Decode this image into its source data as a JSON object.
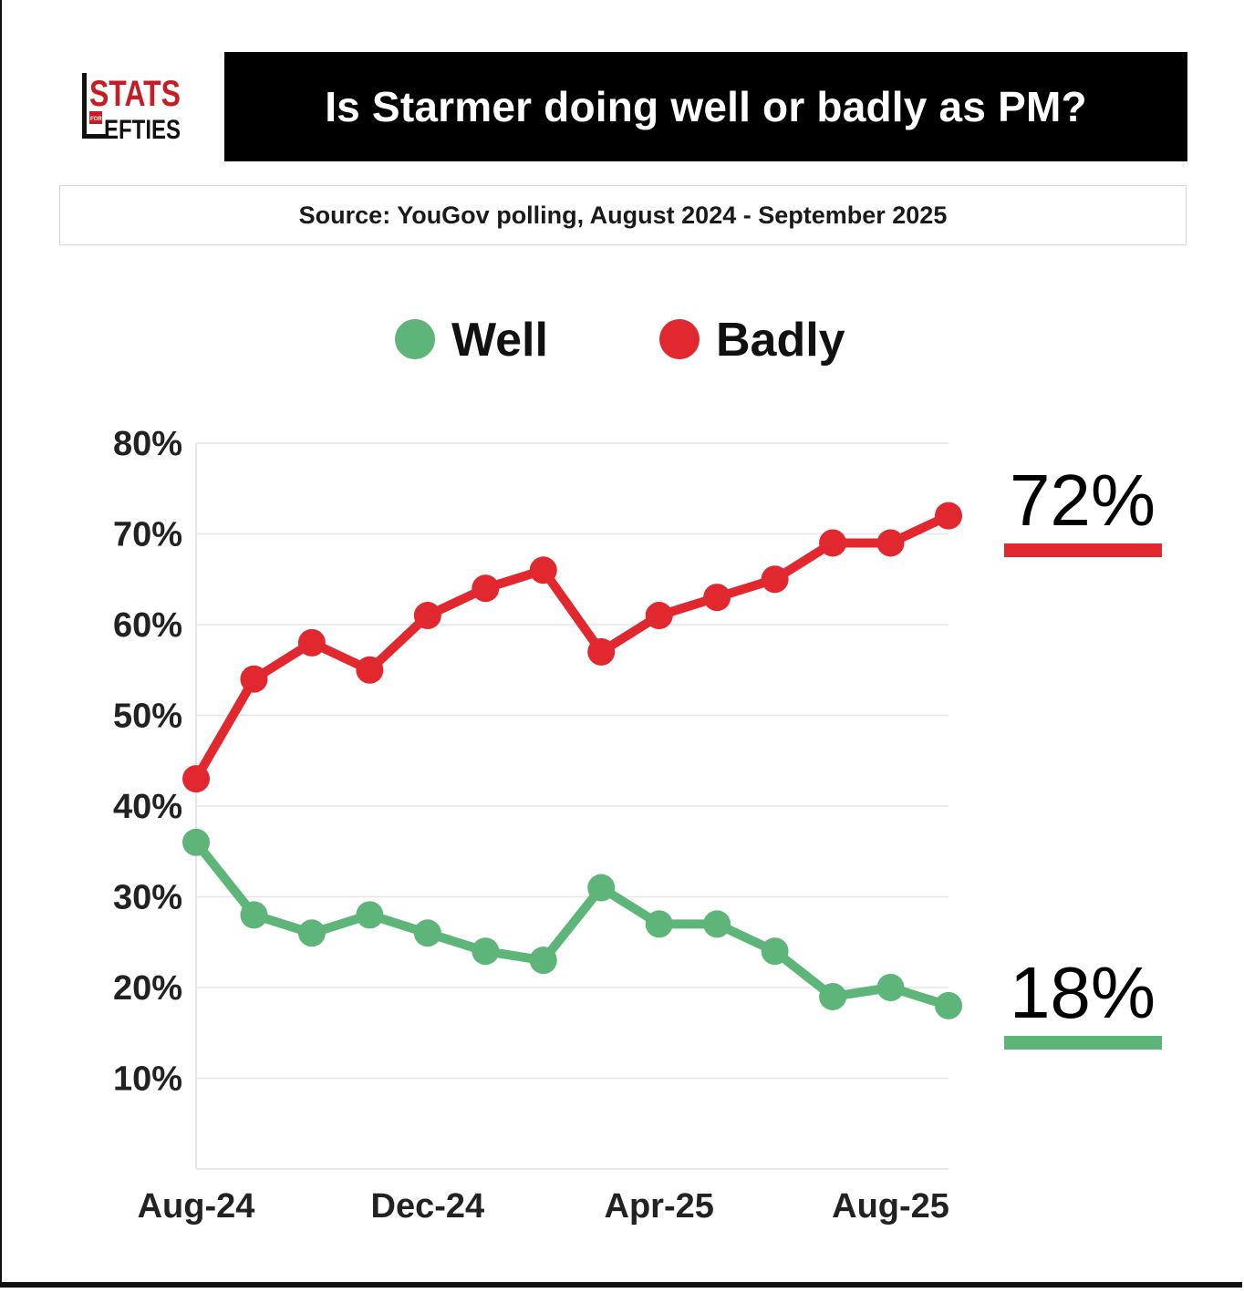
{
  "brand": {
    "logo_line1": "STATS",
    "logo_small": "FOR",
    "logo_line2": "EFTIES"
  },
  "header": {
    "title": "Is Starmer doing well or badly as PM?"
  },
  "source": {
    "text": "Source: YouGov polling, August 2024 - September 2025"
  },
  "colors": {
    "well": "#5db57a",
    "badly": "#e1282e",
    "grid": "#e6e6e6"
  },
  "chart_data": {
    "type": "line",
    "title": "Is Starmer doing well or badly as PM?",
    "x": [
      0,
      1,
      2,
      3,
      4,
      5,
      6,
      7,
      8,
      9,
      10,
      11,
      12,
      13
    ],
    "x_tick_positions": [
      0,
      4,
      8,
      12
    ],
    "x_tick_labels": [
      "Aug-24",
      "Dec-24",
      "Apr-25",
      "Aug-25"
    ],
    "y_tick_values": [
      10,
      20,
      30,
      40,
      50,
      60,
      70,
      80
    ],
    "y_tick_labels": [
      "10%",
      "20%",
      "30%",
      "40%",
      "50%",
      "60%",
      "70%",
      "80%"
    ],
    "ylim": [
      0,
      80
    ],
    "xlim": [
      0,
      13
    ],
    "grid": true,
    "legend_position": "top-center",
    "series": [
      {
        "name": "Well",
        "color": "#5db57a",
        "values": [
          36,
          28,
          26,
          28,
          26,
          24,
          23,
          31,
          27,
          27,
          24,
          19,
          20,
          18
        ],
        "end_label": "18%"
      },
      {
        "name": "Badly",
        "color": "#e1282e",
        "values": [
          43,
          54,
          58,
          55,
          61,
          64,
          66,
          57,
          61,
          63,
          65,
          69,
          69,
          72
        ],
        "end_label": "72%"
      }
    ]
  }
}
